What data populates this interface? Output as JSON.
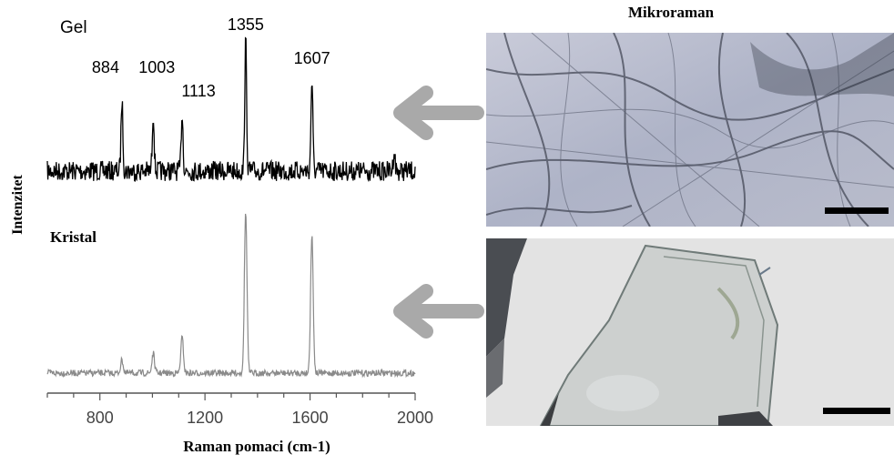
{
  "chart_data": {
    "type": "line",
    "xlabel": "Raman pomaci (cm-1)",
    "ylabel": "Intenzitet",
    "xlim": [
      600,
      2000
    ],
    "xticks": [
      800,
      1200,
      1600,
      2000
    ],
    "series": [
      {
        "name": "Gel",
        "color": "#000000",
        "peaks": [
          {
            "x": 884,
            "height": 0.55
          },
          {
            "x": 1003,
            "height": 0.45
          },
          {
            "x": 1113,
            "height": 0.45
          },
          {
            "x": 1355,
            "height": 1.0
          },
          {
            "x": 1607,
            "height": 0.7
          },
          {
            "x": 1920,
            "height": 0.15
          }
        ],
        "peak_labels": [
          "884",
          "1003",
          "1113",
          "1355",
          "1607"
        ]
      },
      {
        "name": "Kristal",
        "color": "#8a8a8a",
        "peaks": [
          {
            "x": 884,
            "height": 0.08
          },
          {
            "x": 1003,
            "height": 0.12
          },
          {
            "x": 1113,
            "height": 0.22
          },
          {
            "x": 1355,
            "height": 1.0
          },
          {
            "x": 1607,
            "height": 0.85
          }
        ]
      }
    ]
  },
  "images": {
    "title": "Mikroraman",
    "panels": [
      {
        "name": "gel-micrograph",
        "tone": "#b5b8c8"
      },
      {
        "name": "crystal-micrograph",
        "tone": "#dcdcdc"
      }
    ],
    "arrow_color": "#a9a9a9"
  },
  "tick_labels": [
    "800",
    "1200",
    "1600",
    "2000"
  ]
}
